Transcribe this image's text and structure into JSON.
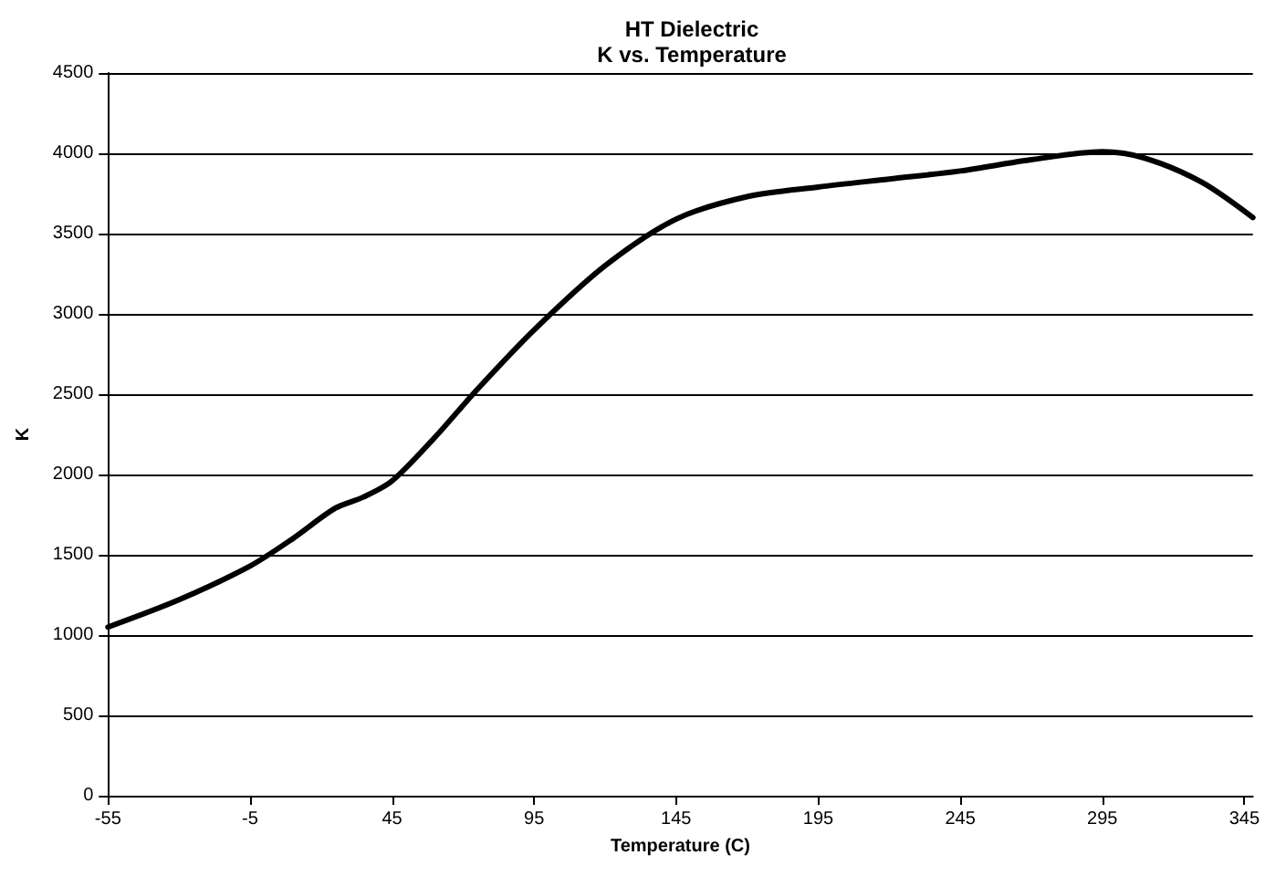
{
  "chart_data": {
    "type": "line",
    "title": "HT Dielectric\nK vs. Temperature",
    "xlabel": "Temperature (C)",
    "ylabel": "K",
    "x": [
      -55,
      -30,
      -5,
      10,
      25,
      35,
      45,
      60,
      75,
      95,
      120,
      145,
      170,
      195,
      220,
      245,
      270,
      295,
      310,
      330,
      348
    ],
    "series": [
      {
        "color": "#000000",
        "values": [
          1050,
          1220,
          1430,
          1600,
          1790,
          1860,
          1960,
          2230,
          2530,
          2900,
          3300,
          3590,
          3730,
          3790,
          3840,
          3890,
          3960,
          4010,
          3970,
          3820,
          3600
        ]
      }
    ],
    "xlim": [
      -55,
      348
    ],
    "xticks": [
      -55,
      -5,
      45,
      95,
      145,
      195,
      245,
      295,
      345
    ],
    "ylim": [
      0,
      4500
    ],
    "yticks": [
      0,
      500,
      1000,
      1500,
      2000,
      2500,
      3000,
      3500,
      4000,
      4500
    ],
    "grid": "y",
    "marker": "none",
    "line_style": "solid"
  }
}
